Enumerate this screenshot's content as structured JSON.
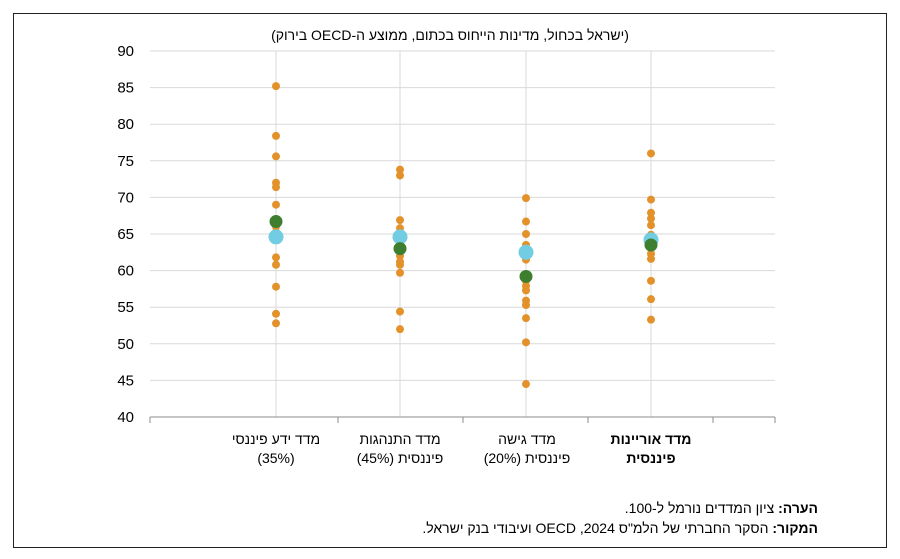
{
  "chart_data": {
    "type": "scatter",
    "title": "(ישראל בכחול, מדינות הייחוס בכתום, ממוצע ה-OECD בירוק)",
    "ylim": [
      40,
      90
    ],
    "yticks": [
      "40",
      "45",
      "50",
      "55",
      "60",
      "65",
      "70",
      "75",
      "80",
      "85",
      "90"
    ],
    "categories": [
      {
        "line1": "מדד ידע פיננסי",
        "line2": "(35%)",
        "bold": false
      },
      {
        "line1": "מדד התנהגות",
        "line2": "פיננסית (45%)",
        "bold": false
      },
      {
        "line1": "מדד גישה",
        "line2": "פיננסית (20%)",
        "bold": false
      },
      {
        "line1": "מדד אוריינות",
        "line2": "פיננסית",
        "bold": true
      }
    ],
    "series": [
      {
        "name": "מדינות הייחוס",
        "color": "#E3922B",
        "values": [
          [
            85.2,
            78.4,
            75.6,
            72.0,
            71.4,
            69.0,
            66.0,
            65.3,
            61.8,
            60.8,
            57.8,
            54.1,
            52.8
          ],
          [
            73.8,
            73.0,
            66.9,
            65.8,
            63.8,
            62.8,
            62.0,
            61.2,
            60.8,
            59.7,
            54.4,
            52.0
          ],
          [
            69.9,
            66.7,
            65.0,
            63.5,
            61.5,
            58.6,
            57.9,
            57.3,
            55.9,
            55.3,
            53.5,
            50.2,
            44.5
          ],
          [
            76.0,
            69.7,
            67.9,
            67.1,
            66.2,
            64.9,
            62.3,
            61.6,
            58.6,
            56.1,
            53.3
          ]
        ]
      },
      {
        "name": "ישראל",
        "color": "#72CDE2",
        "values": [
          64.6,
          64.6,
          62.5,
          64.2
        ]
      },
      {
        "name": "ממוצע ה-OECD",
        "color": "#3D7F2E",
        "values": [
          66.7,
          63.0,
          59.2,
          63.5
        ]
      }
    ]
  },
  "notes": {
    "note_label": "הערה:",
    "note_text": "ציון המדדים נורמל ל-100.",
    "source_label": "המקור:",
    "source_text": "הסקר החברתי של הלמ\"ס 2024, OECD ועיבודי בנק ישראל."
  }
}
